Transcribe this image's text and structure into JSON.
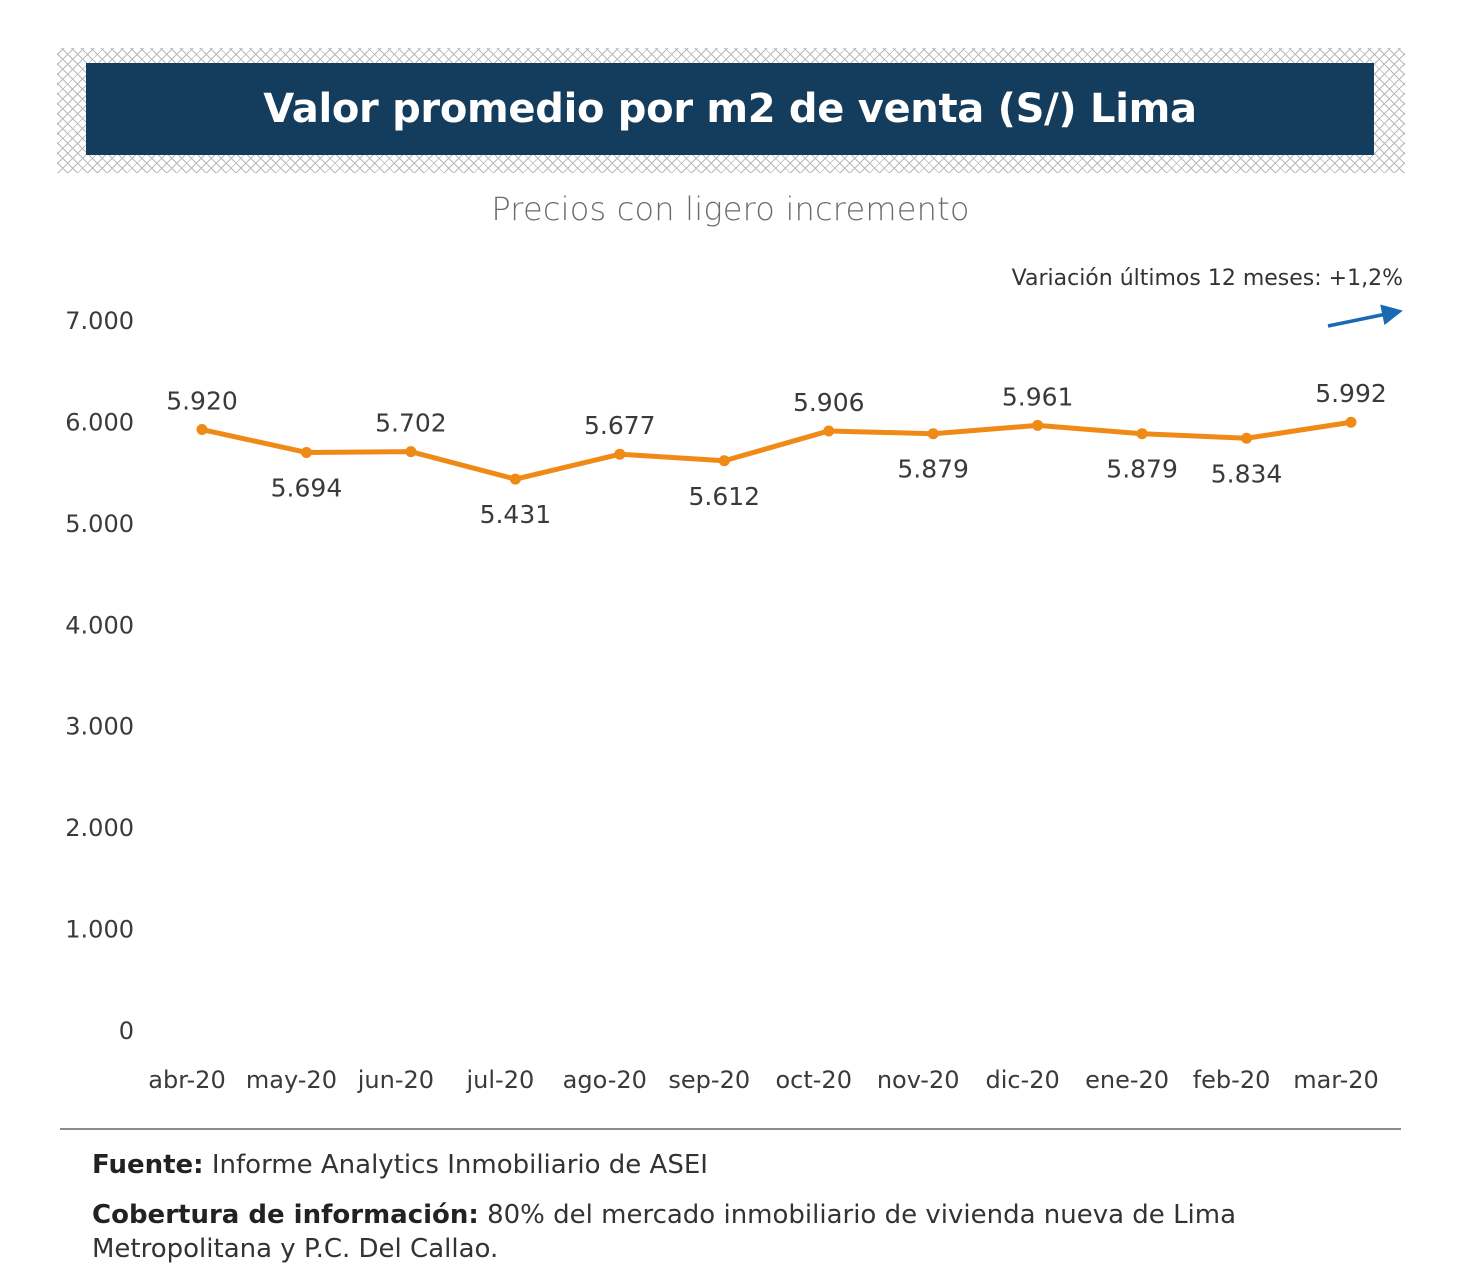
{
  "header": {
    "title": "Valor promedio por m2 de venta (S/)  Lima"
  },
  "subtitle": "Precios con ligero incremento",
  "variation": {
    "text": "Variación últimos 12 meses: +1,2%",
    "arrow_icon": "trend-up-arrow",
    "arrow_color": "#1a6ab3"
  },
  "colors": {
    "header_bg": "#143c5c",
    "line": "#ef8a17"
  },
  "chart_data": {
    "type": "line",
    "title": "Valor promedio por m2 de venta (S/)  Lima",
    "subtitle": "Precios con ligero incremento",
    "xlabel": "",
    "ylabel": "",
    "categories": [
      "abr-20",
      "may-20",
      "jun-20",
      "jul-20",
      "ago-20",
      "sep-20",
      "oct-20",
      "nov-20",
      "dic-20",
      "ene-20",
      "feb-20",
      "mar-20"
    ],
    "series": [
      {
        "name": "Valor promedio por m2",
        "values": [
          5920,
          5694,
          5702,
          5431,
          5677,
          5612,
          5906,
          5879,
          5961,
          5879,
          5834,
          5992
        ],
        "labels": [
          "5.920",
          "5.694",
          "5.702",
          "5.431",
          "5.677",
          "5.612",
          "5.906",
          "5.879",
          "5.961",
          "5.879",
          "5.834",
          "5.992"
        ],
        "label_positions": [
          "above",
          "below",
          "above",
          "below",
          "above",
          "below",
          "above",
          "below",
          "above",
          "below",
          "below",
          "above"
        ]
      }
    ],
    "ylim": [
      0,
      7000
    ],
    "yticks": [
      0,
      1000,
      2000,
      3000,
      4000,
      5000,
      6000,
      7000
    ],
    "ytick_labels": [
      "0",
      "1.000",
      "2.000",
      "3.000",
      "4.000",
      "5.000",
      "6.000",
      "7.000"
    ],
    "grid": false,
    "legend": "none",
    "annotation": "Variación últimos 12 meses: +1,2%"
  },
  "footer": {
    "source_label": "Fuente:",
    "source_text": " Informe Analytics Inmobiliario de ASEI",
    "coverage_label": "Cobertura de información:",
    "coverage_text": "  80% del mercado inmobiliario de vivienda nueva de Lima Metropolitana y P.C. Del Callao."
  }
}
